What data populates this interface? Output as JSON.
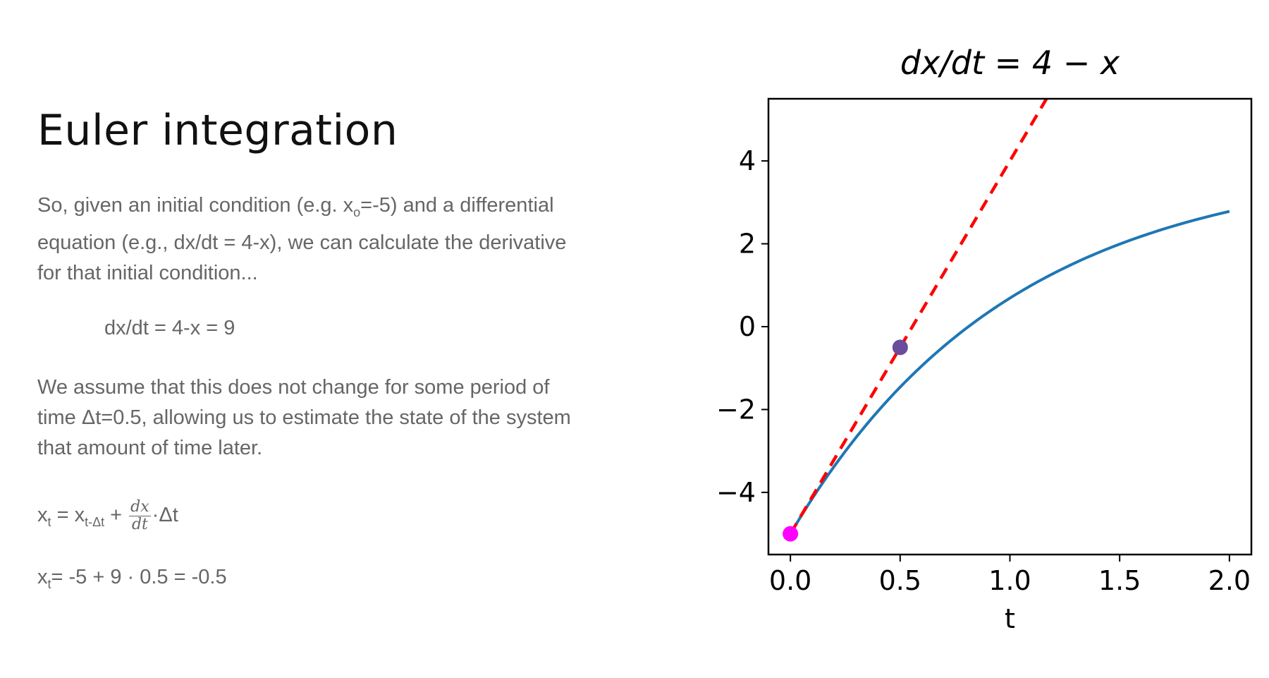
{
  "text": {
    "title": "Euler integration",
    "p1_a": "So, given an initial condition (e.g. x",
    "p1_sub": "o",
    "p1_b": "=-5) and a differential equation (e.g., dx/dt = 4-x), we can calculate the derivative for that initial condition...",
    "eq_center": "dx/dt = 4-x = 9",
    "p2": "We assume that this does not change for some period of time Δt=0.5, allowing us to estimate the state of the system that amount of time later.",
    "f1_x": "x",
    "f1_sub": "t",
    "f1_mid": " = x",
    "f1_sub2": "t-Δt",
    "f1_plus": " + ",
    "f1_num": "dx",
    "f1_den": "dt",
    "f1_end": "·Δt",
    "f2_x": "x",
    "f2_sub": "t",
    "f2_rest": "= -5 + 9 · 0.5 = -0.5"
  },
  "chart_data": {
    "type": "line",
    "title": "dx/dt = 4 − x",
    "xlabel": "t",
    "ylabel": "",
    "xlim": [
      -0.1,
      2.1
    ],
    "ylim": [
      -5.5,
      5.5
    ],
    "xticks": [
      0.0,
      0.5,
      1.0,
      1.5,
      2.0
    ],
    "xtick_labels": [
      "0.0",
      "0.5",
      "1.0",
      "1.5",
      "2.0"
    ],
    "yticks": [
      -4,
      -2,
      0,
      2,
      4
    ],
    "ytick_labels": [
      "−4",
      "−2",
      "0",
      "2",
      "4"
    ],
    "series": [
      {
        "kind": "curve",
        "x0": 0,
        "x1": 2,
        "y0": -5,
        "asymptote": 4,
        "color": "#1f77b4"
      },
      {
        "kind": "tangent",
        "x": [
          0,
          1.2
        ],
        "y": [
          -5,
          5.8
        ],
        "color": "#ff0000",
        "dashed": true
      }
    ],
    "points": [
      {
        "x": 0,
        "y": -5,
        "color": "#ff00ff"
      },
      {
        "x": 0.5,
        "y": -0.5,
        "color": "#6a4c9c"
      }
    ],
    "grid": false
  }
}
